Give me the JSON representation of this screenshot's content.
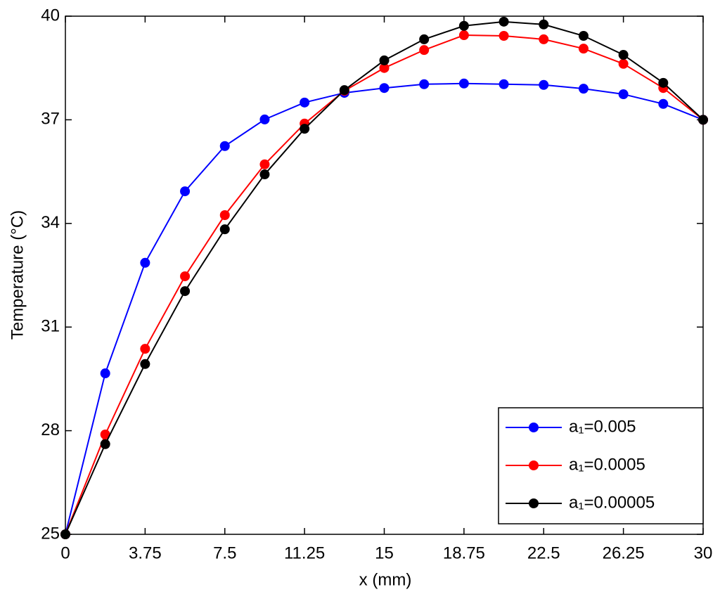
{
  "chart_data": {
    "type": "line",
    "x_label": "x (mm)",
    "y_label": "Temperature (°C)",
    "x": [
      0,
      1.875,
      3.75,
      5.625,
      7.5,
      9.375,
      11.25,
      13.125,
      15,
      16.875,
      18.75,
      20.625,
      22.5,
      24.375,
      26.25,
      28.125,
      30
    ],
    "series": [
      {
        "name": "a₁=0.005",
        "color": "#0000ff",
        "values": [
          25,
          29.66,
          32.86,
          34.93,
          36.24,
          37.01,
          37.5,
          37.78,
          37.92,
          38.03,
          38.05,
          38.03,
          38.01,
          37.9,
          37.74,
          37.46,
          37
        ]
      },
      {
        "name": "a₁=0.0005",
        "color": "#ff0000",
        "values": [
          25,
          27.89,
          30.37,
          32.47,
          34.24,
          35.71,
          36.89,
          37.84,
          38.5,
          39.02,
          39.45,
          39.43,
          39.33,
          39.06,
          38.62,
          37.92,
          37
        ]
      },
      {
        "name": "a₁=0.00005",
        "color": "#000000",
        "values": [
          25,
          27.61,
          29.93,
          32.04,
          33.83,
          35.42,
          36.74,
          37.86,
          38.72,
          39.33,
          39.72,
          39.84,
          39.76,
          39.43,
          38.88,
          38.07,
          37
        ]
      }
    ],
    "xlim": [
      0,
      30
    ],
    "xticks": [
      0,
      3.75,
      7.5,
      11.25,
      15,
      18.75,
      22.5,
      26.25,
      30
    ],
    "ylim": [
      25,
      40
    ],
    "yticks": [
      25,
      28,
      31,
      34,
      37,
      40
    ],
    "legend": "lower-right"
  }
}
